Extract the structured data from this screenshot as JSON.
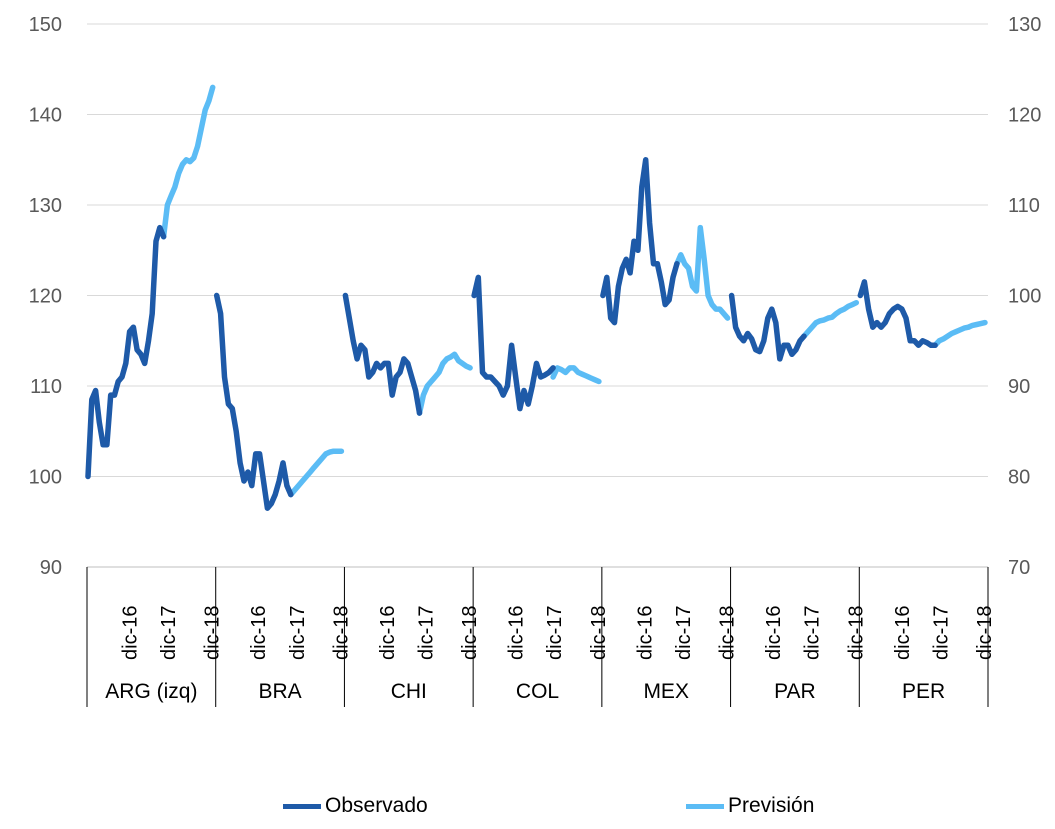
{
  "chart_data": {
    "type": "line",
    "colors": {
      "observado": "#1e5aa8",
      "prevision": "#5bbcf5"
    },
    "y_left": {
      "ticks": [
        "90",
        "100",
        "110",
        "120",
        "130",
        "140",
        "150"
      ],
      "ylim": [
        90,
        150
      ]
    },
    "y_right": {
      "ticks": [
        "70",
        "80",
        "90",
        "100",
        "110",
        "120",
        "130"
      ],
      "ylim": [
        70,
        130
      ]
    },
    "grid": true,
    "period_labels": [
      "dic-16",
      "dic-17",
      "dic-18"
    ],
    "legend": {
      "position": "bottom",
      "items": [
        "Observado",
        "Previsión"
      ]
    },
    "groups": [
      {
        "name": "ARG (izq)",
        "axis": "left",
        "observado": [
          100,
          108.5,
          109.5,
          106,
          103.5,
          103.5,
          109,
          109,
          110.5,
          111,
          112.5,
          116,
          116.5,
          114,
          113.5,
          112.5,
          115,
          118,
          126,
          127.5,
          126.5
        ],
        "prevision": [
          126.5,
          130,
          131,
          132,
          133.5,
          134.5,
          135,
          134.8,
          135.2,
          136.5,
          138.5,
          140.5,
          141.5,
          143
        ]
      },
      {
        "name": "BRA",
        "axis": "right",
        "observado": [
          100,
          98,
          91,
          88,
          87.5,
          85,
          81.5,
          79.5,
          80.5,
          79,
          82.5,
          82.5,
          79.5,
          76.5,
          77,
          78,
          79.5,
          81.5,
          79,
          78
        ],
        "prevision": [
          78,
          78.5,
          79,
          79.5,
          80,
          80.5,
          81,
          81.5,
          82,
          82.5,
          82.7,
          82.8,
          82.8,
          82.8
        ]
      },
      {
        "name": "CHI",
        "axis": "right",
        "observado": [
          100,
          97.5,
          95,
          93,
          94.5,
          94,
          91,
          91.5,
          92.5,
          92,
          92.5,
          92.5,
          89,
          91,
          91.5,
          93,
          92.5,
          91,
          89.5,
          87
        ],
        "prevision": [
          87,
          89,
          90,
          90.5,
          91,
          91.5,
          92.5,
          93,
          93.2,
          93.5,
          92.8,
          92.5,
          92.2,
          92
        ]
      },
      {
        "name": "COL",
        "axis": "right",
        "observado": [
          100,
          102,
          91.5,
          91,
          91,
          90.5,
          90,
          89,
          90,
          94.5,
          91,
          87.5,
          89.5,
          88,
          90,
          92.5,
          91,
          91.2,
          91.5,
          92
        ],
        "prevision": [
          91,
          92,
          91.8,
          91.5,
          92,
          92,
          91.5,
          91.3,
          91.1,
          90.9,
          90.7,
          90.5
        ]
      },
      {
        "name": "MEX",
        "axis": "right",
        "observado": [
          100,
          102,
          97.5,
          97,
          101,
          103,
          104,
          102.5,
          106,
          105,
          112,
          115,
          108,
          103.5,
          103.5,
          101.5,
          99,
          99.5,
          102,
          103.5
        ],
        "prevision": [
          103.5,
          104.5,
          103.5,
          103,
          101,
          100.5,
          107.5,
          104,
          100,
          99,
          98.5,
          98.5,
          98,
          97.5
        ]
      },
      {
        "name": "PAR",
        "axis": "right",
        "observado": [
          100,
          96.5,
          95.5,
          95,
          95.8,
          95.2,
          94,
          93.8,
          95,
          97.5,
          98.5,
          97,
          93,
          94.5,
          94.5,
          93.5,
          94,
          95,
          95.5
        ],
        "prevision": [
          95.5,
          96,
          96.5,
          97,
          97.2,
          97.3,
          97.5,
          97.6,
          98,
          98.3,
          98.5,
          98.8,
          99,
          99.2
        ]
      },
      {
        "name": "PER",
        "axis": "right",
        "observado": [
          100,
          101.5,
          98.5,
          96.5,
          97,
          96.5,
          97,
          98,
          98.5,
          98.8,
          98.5,
          97.5,
          95,
          95,
          94.5,
          95,
          94.8,
          94.5,
          94.5
        ],
        "prevision": [
          94.5,
          95,
          95.2,
          95.5,
          95.8,
          96,
          96.2,
          96.4,
          96.5,
          96.7,
          96.8,
          96.9,
          97
        ]
      }
    ]
  }
}
